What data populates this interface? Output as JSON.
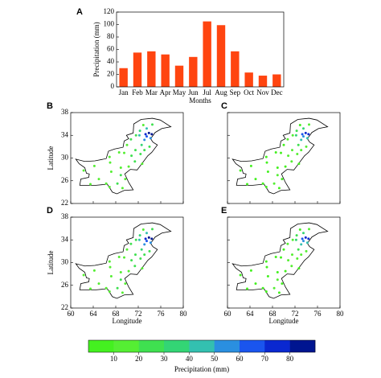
{
  "chart_data": [
    {
      "type": "bar",
      "panel": "A",
      "ylabel": "Precipitation (mm)",
      "xlabel": "Months",
      "categories": [
        "Jan",
        "Feb",
        "Mar",
        "Apr",
        "May",
        "Jun",
        "Jul",
        "Aug",
        "Sep",
        "Oct",
        "Nov",
        "Dec"
      ],
      "values": [
        30,
        55,
        57,
        52,
        34,
        48,
        105,
        99,
        57,
        23,
        18,
        20
      ],
      "color": "#ff4510",
      "ylim": [
        0,
        120
      ],
      "yticks": [
        0,
        20,
        40,
        60,
        80,
        100,
        120
      ]
    },
    {
      "type": "map",
      "panels": [
        "B",
        "C",
        "D",
        "E"
      ],
      "xlabel": "Longitude",
      "ylabel": "Latitude",
      "xlim": [
        60,
        80
      ],
      "xticks": [
        60,
        64,
        68,
        72,
        76,
        80
      ],
      "ylim": [
        22,
        38
      ],
      "yticks": [
        22,
        26,
        30,
        34,
        38
      ],
      "colorbar": {
        "label": "Precipitation (mm)",
        "ticks": [
          10,
          20,
          30,
          40,
          50,
          60,
          70,
          80
        ],
        "colors": [
          "#44f020",
          "#55ee33",
          "#3fe050",
          "#33d575",
          "#33c0b0",
          "#2a8fe0",
          "#1a55ee",
          "#0a28d0",
          "#001590"
        ]
      }
    }
  ]
}
